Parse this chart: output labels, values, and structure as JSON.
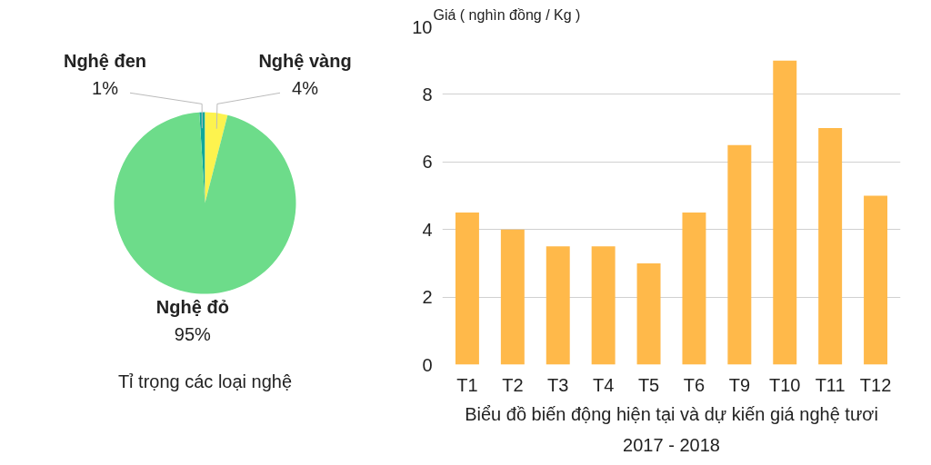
{
  "chart_data": [
    {
      "type": "pie",
      "title": "Tỉ trọng các loại nghệ",
      "categories": [
        "Nghệ đen",
        "Nghệ vàng",
        "Nghệ đỏ"
      ],
      "values": [
        1,
        4,
        95
      ],
      "colors": [
        "#0fa89a",
        "#fdf34e",
        "#6ddc8a"
      ],
      "value_labels": [
        "1%",
        "4%",
        "95%"
      ]
    },
    {
      "type": "bar",
      "title": "Biểu đồ biến động hiện tại và dự kiến giá nghệ tươi 2017 - 2018",
      "ylabel": "Giá ( nghìn đồng / Kg )",
      "categories": [
        "T1",
        "T2",
        "T3",
        "T4",
        "T5",
        "T6",
        "T9",
        "T10",
        "T11",
        "T12"
      ],
      "values": [
        4.5,
        4,
        3.5,
        3.5,
        3,
        4.5,
        6.5,
        9,
        7,
        5
      ],
      "color": "#ffb94a",
      "ylim": [
        0,
        10
      ],
      "yticks": [
        0,
        2,
        4,
        6,
        8,
        10
      ],
      "grid": "y"
    }
  ]
}
